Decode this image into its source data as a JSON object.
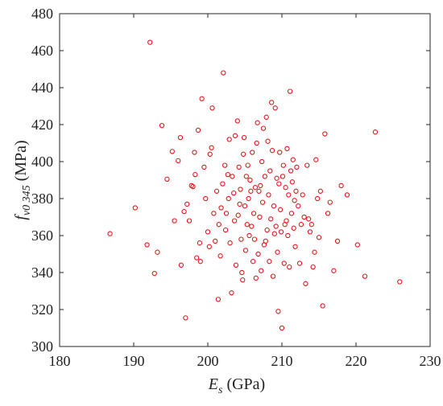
{
  "chart_data": {
    "type": "scatter",
    "xlabel": {
      "main": "E",
      "sub": "s",
      "unit": " (GPa)"
    },
    "ylabel": {
      "main": "f",
      "sub": "v0 345",
      "unit": " (MPa)"
    },
    "xlim": [
      180,
      230
    ],
    "ylim": [
      300,
      480
    ],
    "xticks": [
      "180",
      "190",
      "200",
      "210",
      "220",
      "230"
    ],
    "yticks": [
      "300",
      "320",
      "340",
      "360",
      "380",
      "400",
      "420",
      "440",
      "460",
      "480"
    ],
    "grid": false,
    "legend": "none",
    "marker": "open-circle",
    "color": "#e8141a",
    "points": [
      [
        186.8,
        361
      ],
      [
        190.2,
        375
      ],
      [
        191.8,
        355
      ],
      [
        192.2,
        464.5
      ],
      [
        192.8,
        339.5
      ],
      [
        193.2,
        351
      ],
      [
        193.8,
        419.5
      ],
      [
        194.5,
        390.5
      ],
      [
        195.2,
        405.5
      ],
      [
        195.5,
        368
      ],
      [
        196.0,
        400.5
      ],
      [
        196.3,
        413
      ],
      [
        196.4,
        344
      ],
      [
        196.8,
        373
      ],
      [
        197.0,
        315.5
      ],
      [
        197.2,
        377
      ],
      [
        197.5,
        368
      ],
      [
        197.8,
        387
      ],
      [
        198.0,
        386.5
      ],
      [
        198.2,
        405
      ],
      [
        198.3,
        393
      ],
      [
        198.5,
        348
      ],
      [
        198.7,
        417
      ],
      [
        198.9,
        356
      ],
      [
        199.0,
        346
      ],
      [
        199.2,
        434
      ],
      [
        199.5,
        397
      ],
      [
        199.7,
        380
      ],
      [
        200.0,
        362
      ],
      [
        200.2,
        354
      ],
      [
        200.3,
        404
      ],
      [
        200.5,
        407.5
      ],
      [
        200.6,
        429
      ],
      [
        200.8,
        372
      ],
      [
        201.0,
        357
      ],
      [
        201.2,
        384
      ],
      [
        201.4,
        325.5
      ],
      [
        201.5,
        366
      ],
      [
        201.7,
        349
      ],
      [
        201.8,
        375
      ],
      [
        202.0,
        388
      ],
      [
        202.1,
        448
      ],
      [
        202.3,
        398
      ],
      [
        202.4,
        363
      ],
      [
        202.5,
        372
      ],
      [
        202.7,
        393
      ],
      [
        202.8,
        380
      ],
      [
        202.9,
        412
      ],
      [
        203.0,
        356
      ],
      [
        203.2,
        329
      ],
      [
        203.3,
        392
      ],
      [
        203.5,
        383
      ],
      [
        203.6,
        368
      ],
      [
        203.7,
        414
      ],
      [
        203.8,
        344
      ],
      [
        204.0,
        422
      ],
      [
        204.1,
        371
      ],
      [
        204.2,
        397
      ],
      [
        204.3,
        377
      ],
      [
        204.4,
        385
      ],
      [
        204.5,
        358
      ],
      [
        204.6,
        340
      ],
      [
        204.7,
        336
      ],
      [
        204.8,
        404
      ],
      [
        204.9,
        413
      ],
      [
        205.0,
        376
      ],
      [
        205.1,
        352
      ],
      [
        205.2,
        392
      ],
      [
        205.3,
        366
      ],
      [
        205.4,
        398
      ],
      [
        205.5,
        380
      ],
      [
        205.6,
        360
      ],
      [
        205.7,
        390
      ],
      [
        205.8,
        384
      ],
      [
        205.9,
        365
      ],
      [
        206.0,
        405
      ],
      [
        206.1,
        346
      ],
      [
        206.2,
        372
      ],
      [
        206.3,
        358
      ],
      [
        206.4,
        386
      ],
      [
        206.5,
        337
      ],
      [
        206.6,
        410
      ],
      [
        206.7,
        421
      ],
      [
        206.8,
        350
      ],
      [
        206.9,
        384
      ],
      [
        207.0,
        370
      ],
      [
        207.1,
        387
      ],
      [
        207.2,
        341
      ],
      [
        207.3,
        400
      ],
      [
        207.4,
        378
      ],
      [
        207.5,
        418
      ],
      [
        207.6,
        355
      ],
      [
        207.7,
        392
      ],
      [
        207.8,
        357
      ],
      [
        207.9,
        424
      ],
      [
        208.0,
        363
      ],
      [
        208.1,
        411
      ],
      [
        208.2,
        382
      ],
      [
        208.3,
        346
      ],
      [
        208.4,
        395
      ],
      [
        208.5,
        369
      ],
      [
        208.6,
        432
      ],
      [
        208.7,
        406
      ],
      [
        208.8,
        338
      ],
      [
        208.9,
        376
      ],
      [
        209.0,
        361
      ],
      [
        209.1,
        429
      ],
      [
        209.2,
        365
      ],
      [
        209.3,
        391
      ],
      [
        209.4,
        351
      ],
      [
        209.5,
        319
      ],
      [
        209.6,
        388
      ],
      [
        209.7,
        405
      ],
      [
        209.8,
        374
      ],
      [
        209.9,
        362
      ],
      [
        210.0,
        310
      ],
      [
        210.1,
        392
      ],
      [
        210.2,
        398
      ],
      [
        210.3,
        345
      ],
      [
        210.4,
        366
      ],
      [
        210.5,
        386
      ],
      [
        210.6,
        368
      ],
      [
        210.7,
        407
      ],
      [
        210.8,
        360
      ],
      [
        210.9,
        382
      ],
      [
        211.0,
        343
      ],
      [
        211.1,
        438
      ],
      [
        211.2,
        395
      ],
      [
        211.3,
        372
      ],
      [
        211.4,
        389
      ],
      [
        211.5,
        401
      ],
      [
        211.6,
        364
      ],
      [
        211.7,
        379
      ],
      [
        211.8,
        354
      ],
      [
        211.9,
        384
      ],
      [
        212.0,
        397
      ],
      [
        212.2,
        376
      ],
      [
        212.4,
        345
      ],
      [
        212.6,
        366
      ],
      [
        212.8,
        382
      ],
      [
        213.0,
        370
      ],
      [
        213.2,
        334
      ],
      [
        213.4,
        398
      ],
      [
        213.6,
        369
      ],
      [
        213.8,
        362
      ],
      [
        214.0,
        366
      ],
      [
        214.2,
        343
      ],
      [
        214.4,
        351
      ],
      [
        214.6,
        401
      ],
      [
        214.8,
        380
      ],
      [
        215.0,
        359
      ],
      [
        215.2,
        384
      ],
      [
        215.5,
        322
      ],
      [
        215.8,
        415
      ],
      [
        216.2,
        372
      ],
      [
        216.5,
        378
      ],
      [
        217.0,
        341
      ],
      [
        217.5,
        357
      ],
      [
        218.0,
        387
      ],
      [
        218.8,
        382
      ],
      [
        220.2,
        355
      ],
      [
        221.2,
        338
      ],
      [
        222.6,
        416
      ],
      [
        225.9,
        335
      ]
    ]
  }
}
